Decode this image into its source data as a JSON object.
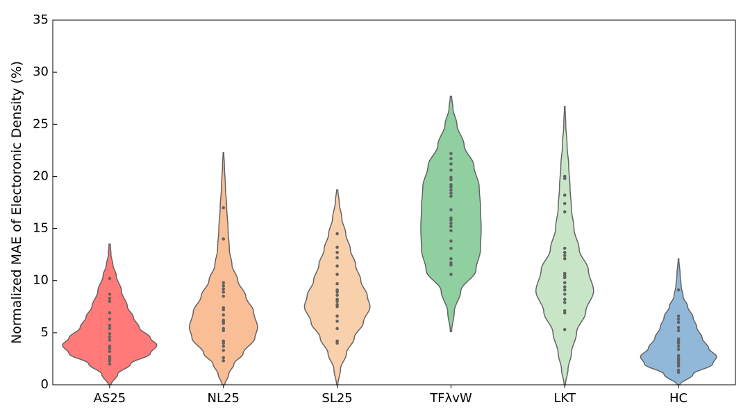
{
  "chart_data": {
    "type": "violin",
    "ylabel": "Normalized MAE of Electoronic Density (%)",
    "xlabel": "",
    "ylim": [
      0,
      35
    ],
    "yticks": [
      0,
      5,
      10,
      15,
      20,
      25,
      30,
      35
    ],
    "grid": false,
    "categories": [
      "AS25",
      "NL25",
      "SL25",
      "TFλvW",
      "LKT",
      "HC"
    ],
    "series": [
      {
        "category": "AS25",
        "color": "#ff7a78",
        "range": [
          0,
          13.5
        ],
        "density": [
          [
            0,
            0.02
          ],
          [
            1,
            0.12
          ],
          [
            2,
            0.32
          ],
          [
            3,
            0.62
          ],
          [
            3.8,
            0.72
          ],
          [
            4.5,
            0.62
          ],
          [
            5.5,
            0.45
          ],
          [
            6.5,
            0.36
          ],
          [
            7.5,
            0.27
          ],
          [
            9,
            0.18
          ],
          [
            10.5,
            0.1
          ],
          [
            11.5,
            0.05
          ],
          [
            12.5,
            0.02
          ],
          [
            13.5,
            0.01
          ]
        ],
        "points": [
          2.0,
          2.3,
          2.5,
          2.7,
          3.2,
          3.5,
          3.7,
          4.3,
          4.6,
          4.9,
          5.4,
          5.7,
          6.3,
          6.9,
          8.0,
          8.3,
          8.7,
          10.2
        ]
      },
      {
        "category": "NL25",
        "color": "#f9be95",
        "range": [
          0,
          22.3
        ],
        "density": [
          [
            0,
            0.02
          ],
          [
            1,
            0.08
          ],
          [
            2,
            0.16
          ],
          [
            3,
            0.3
          ],
          [
            4.5,
            0.48
          ],
          [
            5.5,
            0.52
          ],
          [
            7,
            0.46
          ],
          [
            8.5,
            0.34
          ],
          [
            10,
            0.22
          ],
          [
            11.5,
            0.13
          ],
          [
            13,
            0.09
          ],
          [
            15,
            0.07
          ],
          [
            17,
            0.05
          ],
          [
            19,
            0.03
          ],
          [
            21,
            0.015
          ],
          [
            22.3,
            0.005
          ]
        ],
        "points": [
          2.3,
          2.6,
          3.3,
          3.7,
          4.0,
          4.2,
          5.2,
          5.4,
          5.9,
          6.1,
          6.2,
          6.7,
          7.2,
          7.4,
          8.5,
          8.9,
          9.2,
          9.5,
          9.8,
          14.0,
          17.0
        ]
      },
      {
        "category": "SL25",
        "color": "#f8d0ac",
        "range": [
          0,
          18.7
        ],
        "density": [
          [
            0,
            0.01
          ],
          [
            1.5,
            0.05
          ],
          [
            3,
            0.14
          ],
          [
            4.5,
            0.26
          ],
          [
            6,
            0.4
          ],
          [
            7.5,
            0.5
          ],
          [
            8.5,
            0.46
          ],
          [
            10,
            0.36
          ],
          [
            11.5,
            0.28
          ],
          [
            13,
            0.2
          ],
          [
            14.5,
            0.13
          ],
          [
            16,
            0.07
          ],
          [
            17.5,
            0.03
          ],
          [
            18.7,
            0.01
          ]
        ],
        "points": [
          4.0,
          4.2,
          5.4,
          6.1,
          6.6,
          7.5,
          7.7,
          8.0,
          8.2,
          8.6,
          8.9,
          9.1,
          9.7,
          10.6,
          11.4,
          12.2,
          12.7,
          13.2,
          14.5
        ]
      },
      {
        "category": "TFλvW",
        "color": "#8fcfa0",
        "range": [
          5.1,
          27.7
        ],
        "density": [
          [
            5.1,
            0.01
          ],
          [
            7,
            0.05
          ],
          [
            9,
            0.15
          ],
          [
            11,
            0.38
          ],
          [
            13,
            0.45
          ],
          [
            15,
            0.46
          ],
          [
            17,
            0.45
          ],
          [
            19,
            0.43
          ],
          [
            21,
            0.35
          ],
          [
            23,
            0.2
          ],
          [
            25,
            0.09
          ],
          [
            26.5,
            0.03
          ],
          [
            27.7,
            0.01
          ]
        ],
        "points": [
          10.6,
          11.5,
          11.7,
          12.1,
          13.1,
          13.8,
          14.8,
          15.2,
          15.5,
          15.8,
          16.0,
          16.8,
          18.1,
          18.4,
          18.7,
          19.0,
          19.2,
          19.7,
          19.9,
          20.6,
          21.2,
          21.7,
          22.2
        ]
      },
      {
        "category": "LKT",
        "color": "#c8e6c7",
        "range": [
          0,
          26.7
        ],
        "density": [
          [
            0,
            0.01
          ],
          [
            1.5,
            0.05
          ],
          [
            3,
            0.1
          ],
          [
            5,
            0.18
          ],
          [
            7,
            0.32
          ],
          [
            9,
            0.44
          ],
          [
            11,
            0.36
          ],
          [
            13,
            0.22
          ],
          [
            15,
            0.14
          ],
          [
            17,
            0.1
          ],
          [
            19,
            0.08
          ],
          [
            21,
            0.06
          ],
          [
            23,
            0.035
          ],
          [
            25,
            0.015
          ],
          [
            26.7,
            0.005
          ]
        ],
        "points": [
          5.3,
          6.9,
          7.1,
          7.9,
          8.2,
          8.7,
          9.1,
          9.4,
          9.8,
          10.3,
          10.5,
          10.7,
          12.1,
          12.4,
          12.7,
          13.1,
          16.6,
          17.4,
          18.2,
          19.8,
          20.0
        ]
      },
      {
        "category": "HC",
        "color": "#92b8d9",
        "range": [
          0,
          12.1
        ],
        "density": [
          [
            0,
            0.02
          ],
          [
            1,
            0.22
          ],
          [
            2,
            0.52
          ],
          [
            2.7,
            0.58
          ],
          [
            3.5,
            0.46
          ],
          [
            4.5,
            0.36
          ],
          [
            5.5,
            0.28
          ],
          [
            6.5,
            0.22
          ],
          [
            7.5,
            0.14
          ],
          [
            8.5,
            0.07
          ],
          [
            9.5,
            0.04
          ],
          [
            10.5,
            0.025
          ],
          [
            12.1,
            0.005
          ]
        ],
        "points": [
          1.2,
          1.4,
          1.8,
          2.0,
          2.2,
          2.4,
          2.6,
          2.8,
          3.4,
          3.7,
          4.0,
          4.2,
          4.4,
          5.2,
          5.5,
          6.0,
          6.3,
          6.6,
          9.1
        ]
      }
    ],
    "style": {
      "outline_color": "#636363",
      "point_color": "#636363",
      "axis_color": "#000000"
    }
  }
}
